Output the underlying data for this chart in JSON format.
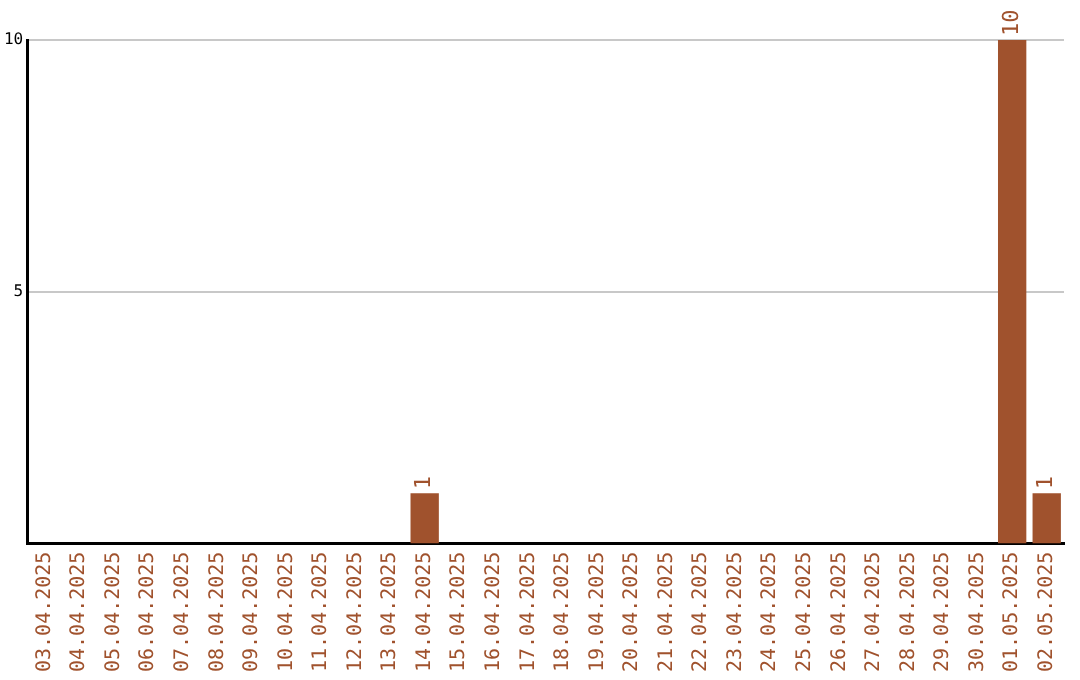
{
  "chart_data": {
    "type": "bar",
    "categories": [
      "03.04.2025",
      "04.04.2025",
      "05.04.2025",
      "06.04.2025",
      "07.04.2025",
      "08.04.2025",
      "09.04.2025",
      "10.04.2025",
      "11.04.2025",
      "12.04.2025",
      "13.04.2025",
      "14.04.2025",
      "15.04.2025",
      "16.04.2025",
      "17.04.2025",
      "18.04.2025",
      "19.04.2025",
      "20.04.2025",
      "21.04.2025",
      "22.04.2025",
      "23.04.2025",
      "24.04.2025",
      "25.04.2025",
      "26.04.2025",
      "27.04.2025",
      "28.04.2025",
      "29.04.2025",
      "30.04.2025",
      "01.05.2025",
      "02.05.2025"
    ],
    "values": [
      0,
      0,
      0,
      0,
      0,
      0,
      0,
      0,
      0,
      0,
      0,
      1,
      0,
      0,
      0,
      0,
      0,
      0,
      0,
      0,
      0,
      0,
      0,
      0,
      0,
      0,
      0,
      0,
      10,
      1
    ],
    "value_labels": [
      null,
      null,
      null,
      null,
      null,
      null,
      null,
      null,
      null,
      null,
      null,
      "1",
      null,
      null,
      null,
      null,
      null,
      null,
      null,
      null,
      null,
      null,
      null,
      null,
      null,
      null,
      null,
      null,
      "10",
      "1"
    ],
    "color": "#a0522d",
    "ylim": [
      0,
      10
    ],
    "yticks": [
      5,
      10
    ],
    "grid": "y",
    "legend": false
  }
}
